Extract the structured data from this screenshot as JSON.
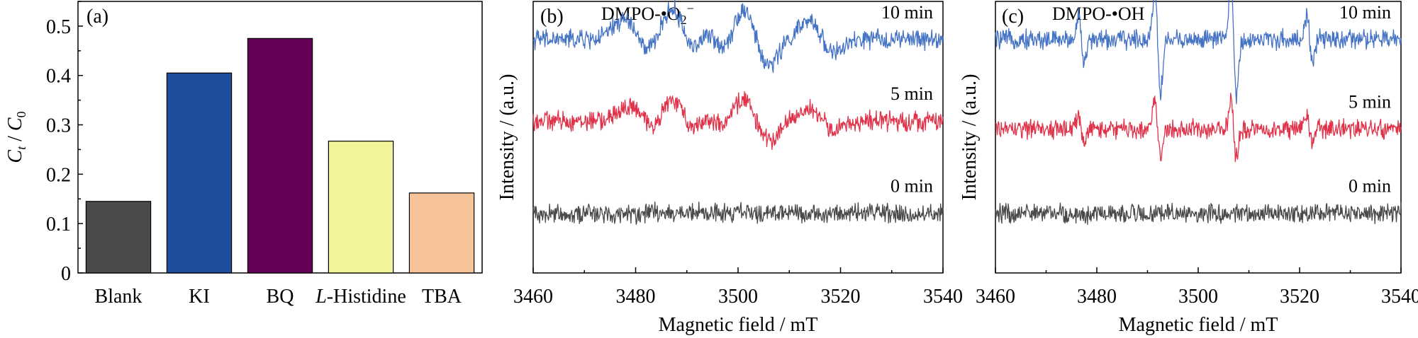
{
  "chart_data": [
    {
      "type": "bar",
      "panel_label": "(a)",
      "ylabel": "C_t / C_0",
      "ylabel_main": "C",
      "ylabel_sub": "t",
      "ylabel_sep": " / ",
      "ylabel_main2": "C",
      "ylabel_sub2": "0",
      "categories": [
        "Blank",
        "KI",
        "BQ",
        "L-Histidine",
        "TBA"
      ],
      "category_display": [
        {
          "italic": "",
          "rest": "Blank"
        },
        {
          "italic": "",
          "rest": "KI"
        },
        {
          "italic": "",
          "rest": "BQ"
        },
        {
          "italic": "L",
          "rest": "-Histidine"
        },
        {
          "italic": "",
          "rest": "TBA"
        }
      ],
      "values": [
        0.145,
        0.405,
        0.475,
        0.267,
        0.162
      ],
      "colors": [
        "#4a4a4a",
        "#1f4e9a",
        "#650057",
        "#f2f59a",
        "#f7c49a"
      ],
      "ylim": [
        0,
        0.55
      ],
      "yticks": [
        "0",
        "0.1",
        "0.2",
        "0.3",
        "0.4",
        "0.5"
      ]
    },
    {
      "type": "line",
      "panel_label": "(b)",
      "title": "DMPO-•O₂⁻",
      "title_main": "DMPO-•O",
      "title_sub": "2",
      "title_sup": "−",
      "xlabel": "Magnetic field / mT",
      "ylabel": "Intensity / (a.u.)",
      "xlim": [
        3460,
        3540
      ],
      "xticks": [
        "3460",
        "3480",
        "3500",
        "3520",
        "3540"
      ],
      "series": [
        {
          "name": "10 min",
          "color": "#4472c4",
          "offset": 0.86,
          "peaks": [
            [
              3480,
              0.07
            ],
            [
              3489,
              0.11
            ],
            [
              3495,
              0.07
            ],
            [
              3503,
              0.12
            ],
            [
              3516,
              0.06
            ]
          ]
        },
        {
          "name": "5 min",
          "color": "#e0334a",
          "offset": 0.56,
          "peaks": [
            [
              3481,
              0.05
            ],
            [
              3489,
              0.08
            ],
            [
              3495,
              0.05
            ],
            [
              3503,
              0.09
            ],
            [
              3516,
              0.04
            ]
          ]
        },
        {
          "name": "0 min",
          "color": "#4a4a4a",
          "offset": 0.22,
          "peaks": []
        }
      ]
    },
    {
      "type": "line",
      "panel_label": "(c)",
      "title": "DMPO-•OH",
      "xlabel": "Magnetic field / mT",
      "ylabel": "Intensity / (a.u.)",
      "xlim": [
        3460,
        3540
      ],
      "xticks": [
        "3460",
        "3480",
        "3500",
        "3520",
        "3540"
      ],
      "series": [
        {
          "name": "10 min",
          "color": "#4472c4",
          "offset": 0.86,
          "lines": [
            3477,
            3492,
            3507,
            3522
          ],
          "amps": [
            0.09,
            0.2,
            0.2,
            0.09
          ]
        },
        {
          "name": "5 min",
          "color": "#e0334a",
          "offset": 0.53,
          "lines": [
            3477,
            3492,
            3507,
            3522
          ],
          "amps": [
            0.05,
            0.1,
            0.1,
            0.05
          ]
        },
        {
          "name": "0 min",
          "color": "#4a4a4a",
          "offset": 0.22,
          "lines": [],
          "amps": []
        }
      ]
    }
  ]
}
